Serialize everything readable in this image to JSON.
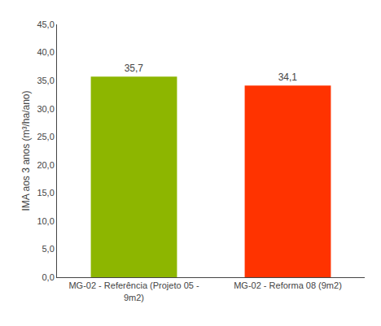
{
  "chart_data": {
    "type": "bar",
    "categories": [
      "MG-02 - Referência (Projeto 05 -\n9m2)",
      "MG-02 - Reforma 08 (9m2)"
    ],
    "values": [
      35.7,
      34.1
    ],
    "value_labels": [
      "35,7",
      "34,1"
    ],
    "data_labels": true,
    "colors": [
      "#8DB600",
      "#FF3300"
    ],
    "ylabel": "IMA aos 3 anos (m³/ha/ano)",
    "ylim": [
      0,
      45
    ],
    "yticks": [
      {
        "value": 0,
        "label": "0,0"
      },
      {
        "value": 5,
        "label": "5,0"
      },
      {
        "value": 10,
        "label": "10,0"
      },
      {
        "value": 15,
        "label": "15,0"
      },
      {
        "value": 20,
        "label": "20,0"
      },
      {
        "value": 25,
        "label": "25,0"
      },
      {
        "value": 30,
        "label": "30,0"
      },
      {
        "value": 35,
        "label": "35,0"
      },
      {
        "value": 40,
        "label": "40,0"
      },
      {
        "value": 45,
        "label": "45,0"
      }
    ],
    "grid": false
  }
}
